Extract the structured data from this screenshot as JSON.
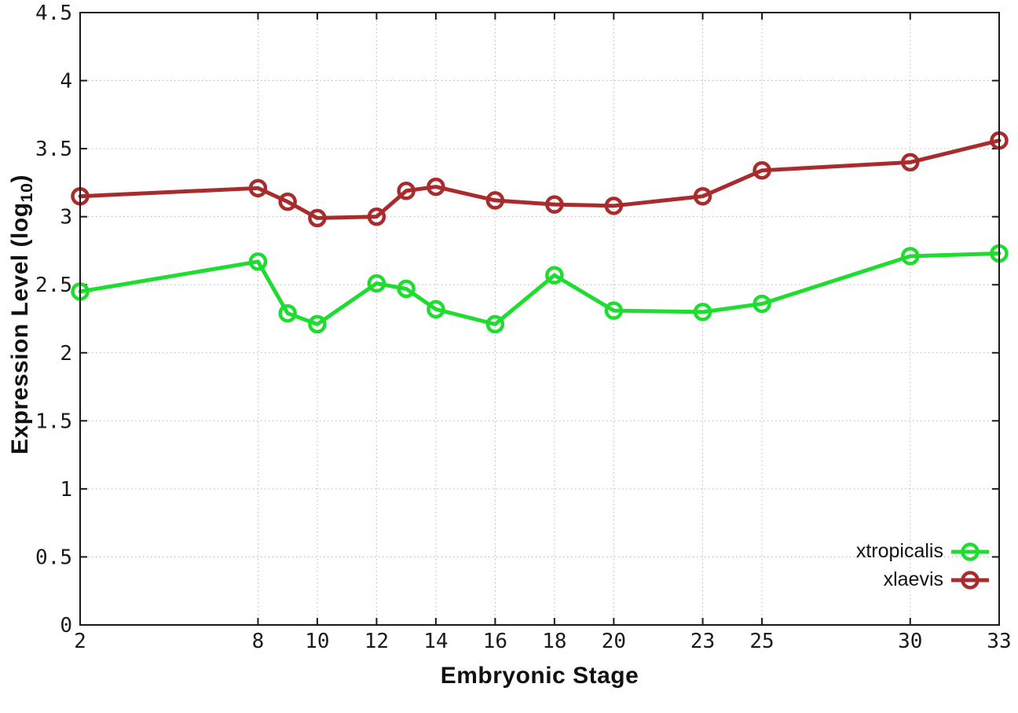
{
  "chart_data": {
    "type": "line",
    "title": "",
    "xlabel": "Embryonic Stage",
    "ylabel": {
      "pre": "Expression Level (log",
      "sub": "10",
      "post": ")"
    },
    "x": [
      2,
      8,
      9,
      10,
      12,
      13,
      14,
      16,
      18,
      20,
      23,
      25,
      30,
      33
    ],
    "x_tick_labels": [
      "2",
      "8",
      "10",
      "12",
      "14",
      "16",
      "18",
      "20",
      "23",
      "25",
      "30",
      "33"
    ],
    "x_tick_values": [
      2,
      8,
      10,
      12,
      14,
      16,
      18,
      20,
      23,
      25,
      30,
      33
    ],
    "y_tick_labels": [
      "0",
      "0.5",
      "1",
      "1.5",
      "2",
      "2.5",
      "3",
      "3.5",
      "4",
      "4.5"
    ],
    "y_tick_values": [
      0,
      0.5,
      1,
      1.5,
      2,
      2.5,
      3,
      3.5,
      4,
      4.5
    ],
    "xlim": [
      2,
      33
    ],
    "ylim": [
      0,
      4.5
    ],
    "grid": true,
    "legend_position": "inside-bottom-right",
    "marker": "open-circle",
    "series": [
      {
        "name": "xtropicalis",
        "color": "#1edd30",
        "values": [
          2.45,
          2.67,
          2.29,
          2.21,
          2.51,
          2.47,
          2.32,
          2.21,
          2.57,
          2.31,
          2.3,
          2.36,
          2.71,
          2.73
        ]
      },
      {
        "name": "xlaevis",
        "color": "#a92c2c",
        "values": [
          3.15,
          3.21,
          3.11,
          2.99,
          3.0,
          3.19,
          3.22,
          3.12,
          3.09,
          3.08,
          3.15,
          3.34,
          3.4,
          3.56
        ]
      }
    ]
  },
  "styles": {
    "background": "#ffffff",
    "border_color": "#1a1a1a",
    "grid_color": "#b8b8b8",
    "tick_color": "#1a1a1a",
    "tick_label_color": "#1a1a1a"
  }
}
